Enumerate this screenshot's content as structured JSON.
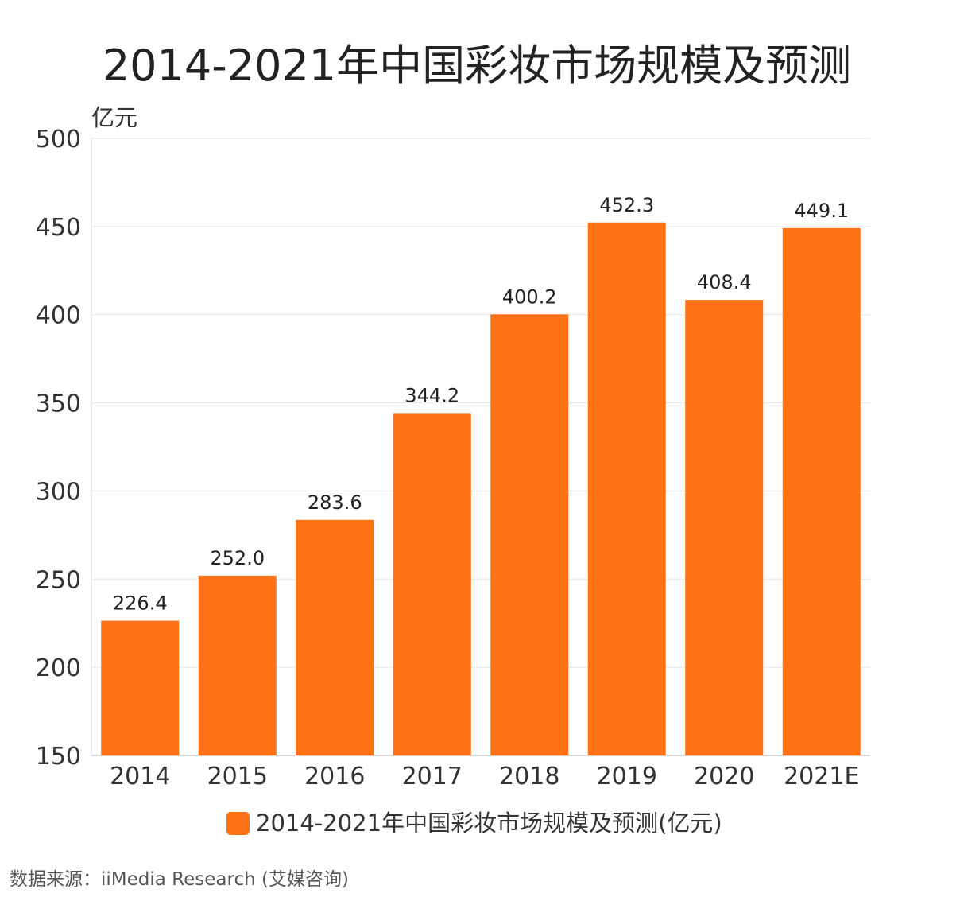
{
  "chart_data": {
    "type": "bar",
    "title": "2014-2021年中国彩妆市场规模及预测",
    "ylabel": "亿元",
    "xlabel": "",
    "categories": [
      "2014",
      "2015",
      "2016",
      "2017",
      "2018",
      "2019",
      "2020",
      "2021E"
    ],
    "series": [
      {
        "name": "2014-2021年中国彩妆市场规模及预测(亿元)",
        "values": [
          226.4,
          252.0,
          283.6,
          344.2,
          400.2,
          452.3,
          408.4,
          449.1
        ],
        "value_labels": [
          "226.4",
          "252.0",
          "283.6",
          "344.2",
          "400.2",
          "452.3",
          "408.4",
          "449.1"
        ],
        "color": "#ff7215"
      }
    ],
    "ylim": [
      150,
      500
    ],
    "yticks": [
      "150",
      "200",
      "250",
      "300",
      "350",
      "400",
      "450",
      "500"
    ],
    "grid": true,
    "legend": "bottom-center"
  },
  "source_text": "数据来源：iiMedia Research (艾媒咨询)"
}
